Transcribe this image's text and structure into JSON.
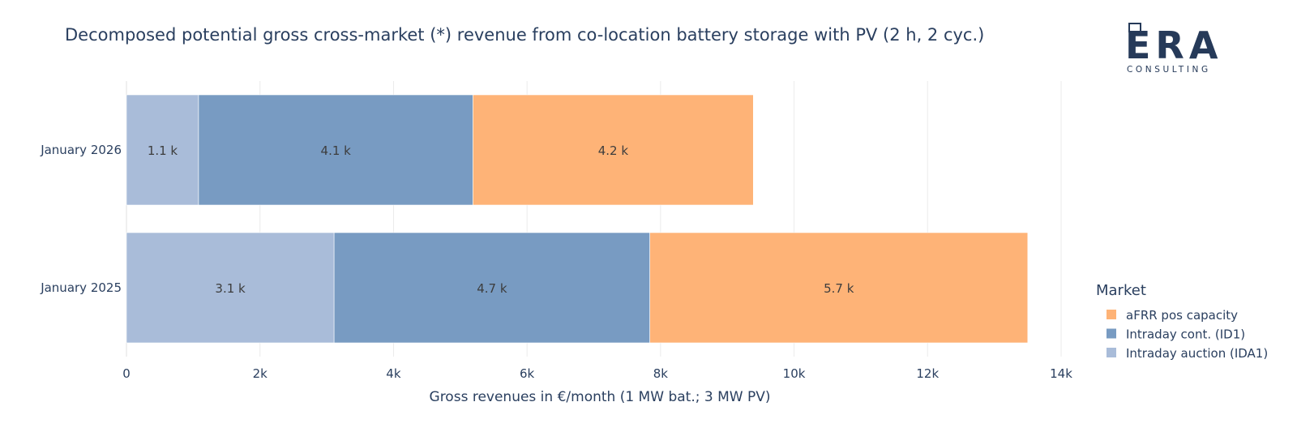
{
  "chart_data": {
    "type": "bar",
    "orientation": "horizontal",
    "stacked": true,
    "title": "Decomposed potential gross cross-market (*) revenue from co-location battery storage with PV (2 h, 2 cyc.)",
    "xlabel": "Gross revenues in €/month (1 MW bat.; 3 MW PV)",
    "ylabel": "",
    "xlim": [
      0,
      14000
    ],
    "x_ticks": [
      0,
      2000,
      4000,
      6000,
      8000,
      10000,
      12000,
      14000
    ],
    "x_tick_labels": [
      "0",
      "2k",
      "4k",
      "6k",
      "8k",
      "10k",
      "12k",
      "14k"
    ],
    "categories": [
      "January 2026",
      "January 2025"
    ],
    "series": [
      {
        "name": "Intraday auction (IDA1)",
        "values": [
          1080,
          3110
        ],
        "labels": [
          "1.1 k",
          "3.1 k"
        ],
        "color": "#a9bcd9"
      },
      {
        "name": "Intraday cont. (ID1)",
        "values": [
          4110,
          4730
        ],
        "labels": [
          "4.1 k",
          "4.7 k"
        ],
        "color": "#789bc2"
      },
      {
        "name": "aFRR pos capacity",
        "values": [
          4200,
          5660
        ],
        "labels": [
          "4.2 k",
          "5.7 k"
        ],
        "color": "#feb377"
      }
    ],
    "legend": {
      "title": "Market",
      "placement": "right",
      "order": [
        "aFRR pos capacity",
        "Intraday cont. (ID1)",
        "Intraday auction (IDA1)"
      ]
    },
    "grid": true
  },
  "logo": {
    "name": "ERA",
    "subtitle": "CONSULTING"
  }
}
